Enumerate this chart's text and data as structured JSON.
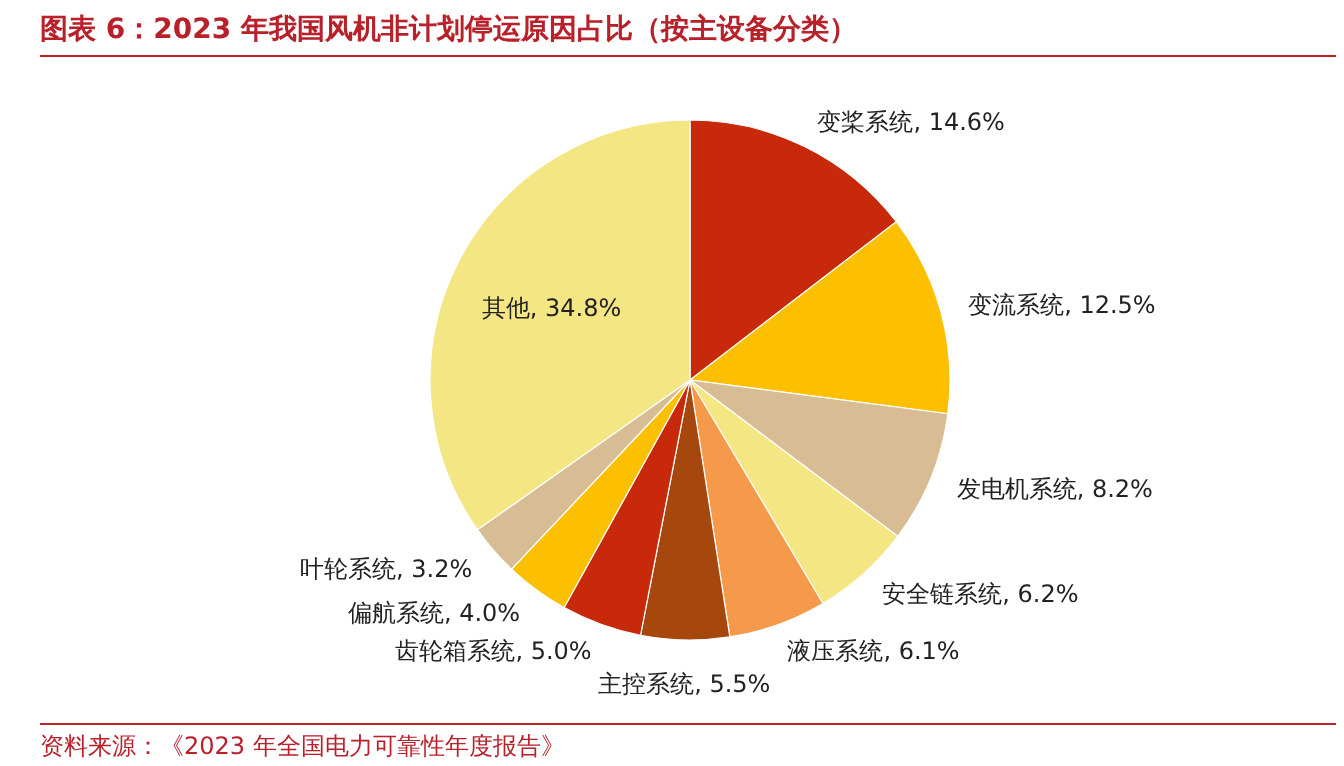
{
  "chart_data": {
    "type": "pie",
    "title": "图表 6：2023 年我国风机非计划停运原因占比（按主设备分类）",
    "categories": [
      "变桨系统",
      "变流系统",
      "发电机系统",
      "安全链系统",
      "液压系统",
      "主控系统",
      "齿轮箱系统",
      "偏航系统",
      "叶轮系统",
      "其他"
    ],
    "values": [
      14.6,
      12.5,
      8.2,
      6.2,
      6.1,
      5.5,
      5.0,
      4.0,
      3.2,
      34.8
    ],
    "colors": [
      "#c8290a",
      "#fcc000",
      "#d8bc94",
      "#f5e684",
      "#f59a4a",
      "#a6470e",
      "#c8290a",
      "#fcc000",
      "#d8bc94",
      "#f5e684"
    ],
    "value_labels": [
      "14.6%",
      "12.5%",
      "8.2%",
      "6.2%",
      "6.1%",
      "5.5%",
      "5.0%",
      "4.0%",
      "3.2%",
      "34.8%"
    ],
    "annotations": [
      "资料来源：《2023 年全国电力可靠性年度报告》"
    ],
    "legend": false
  }
}
